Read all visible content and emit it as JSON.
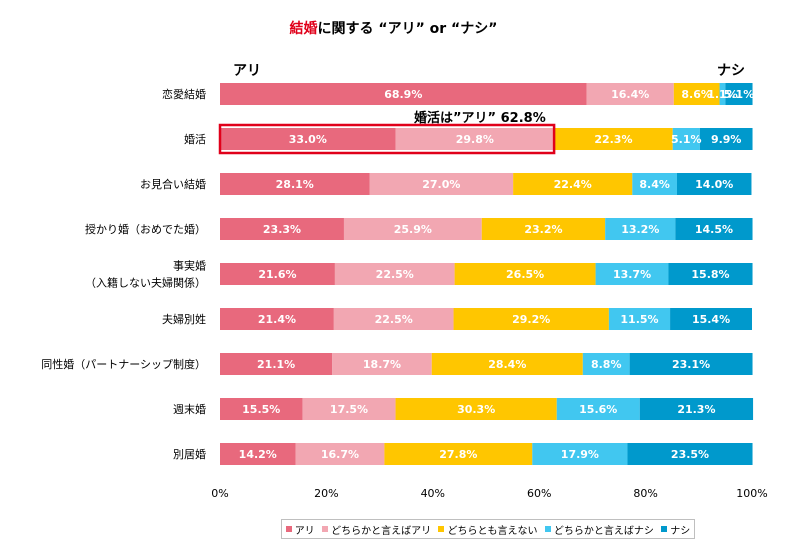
{
  "title": {
    "highlight": "結婚",
    "rest": "に関する “アリ” or “ナシ”"
  },
  "labels": {
    "left": "アリ",
    "right": "ナシ"
  },
  "callout": {
    "text": "婚活は”アリ” 62.8%",
    "row_index": 1
  },
  "colors": {
    "ari": "#e8697d",
    "somewhat_ari": "#f2a7b2",
    "neutral": "#ffc600",
    "somewhat_nashi": "#41c7f0",
    "nashi": "#0099cc",
    "highlight_box": "#e0001a"
  },
  "chart_data": {
    "type": "bar",
    "orientation": "horizontal",
    "stacked": true,
    "title": "結婚に関する “アリ” or “ナシ”",
    "xlim": [
      0,
      100
    ],
    "x_ticks": [
      "0%",
      "20%",
      "40%",
      "60%",
      "80%",
      "100%"
    ],
    "legend_position": "bottom",
    "categories": [
      [
        "恋愛結婚"
      ],
      [
        "婚活"
      ],
      [
        "お見合い結婚"
      ],
      [
        "授かり婚（おめでた婚）"
      ],
      [
        "事実婚",
        "（入籍しない夫婦関係）"
      ],
      [
        "夫婦別姓"
      ],
      [
        "同性婚（パートナーシップ制度）"
      ],
      [
        "週末婚"
      ],
      [
        "別居婚"
      ]
    ],
    "series": [
      {
        "name": "アリ",
        "color_key": "ari",
        "label_color": "#ffffff",
        "values": [
          68.9,
          33.0,
          28.1,
          23.3,
          21.6,
          21.4,
          21.1,
          15.5,
          14.2
        ],
        "labels": [
          "68.9%",
          "33.0%",
          "28.1%",
          "23.3%",
          "21.6%",
          "21.4%",
          "21.1%",
          "15.5%",
          "14.2%"
        ]
      },
      {
        "name": "どちらかと言えばアリ",
        "color_key": "somewhat_ari",
        "label_color": "#ffffff",
        "values": [
          16.4,
          29.8,
          27.0,
          25.9,
          22.5,
          22.5,
          18.7,
          17.5,
          16.7
        ],
        "labels": [
          "16.4%",
          "29.8%",
          "27.0%",
          "25.9%",
          "22.5%",
          "22.5%",
          "18.7%",
          "17.5%",
          "16.7%"
        ]
      },
      {
        "name": "どちらとも言えない",
        "color_key": "neutral",
        "label_color": "#ffffff",
        "values": [
          8.6,
          22.3,
          22.4,
          23.2,
          26.5,
          29.2,
          28.4,
          30.3,
          27.8
        ],
        "labels": [
          "8.6%",
          "22.3%",
          "22.4%",
          "23.2%",
          "26.5%",
          "29.2%",
          "28.4%",
          "30.3%",
          "27.8%"
        ]
      },
      {
        "name": "どちらかと言えばナシ",
        "color_key": "somewhat_nashi",
        "label_color": "#ffffff",
        "values": [
          1.1,
          5.1,
          8.4,
          13.2,
          13.7,
          11.5,
          8.8,
          15.6,
          17.9
        ],
        "labels": [
          "1.1%",
          "5.1%",
          "8.4%",
          "13.2%",
          "13.7%",
          "11.5%",
          "8.8%",
          "15.6%",
          "17.9%"
        ]
      },
      {
        "name": "ナシ",
        "color_key": "nashi",
        "label_color": "#ffffff",
        "values": [
          5.1,
          9.9,
          14.0,
          14.5,
          15.8,
          15.4,
          23.1,
          21.3,
          23.5
        ],
        "labels": [
          "5.1%",
          "9.9%",
          "14.0%",
          "14.5%",
          "15.8%",
          "15.4%",
          "23.1%",
          "21.3%",
          "23.5%"
        ]
      }
    ]
  }
}
